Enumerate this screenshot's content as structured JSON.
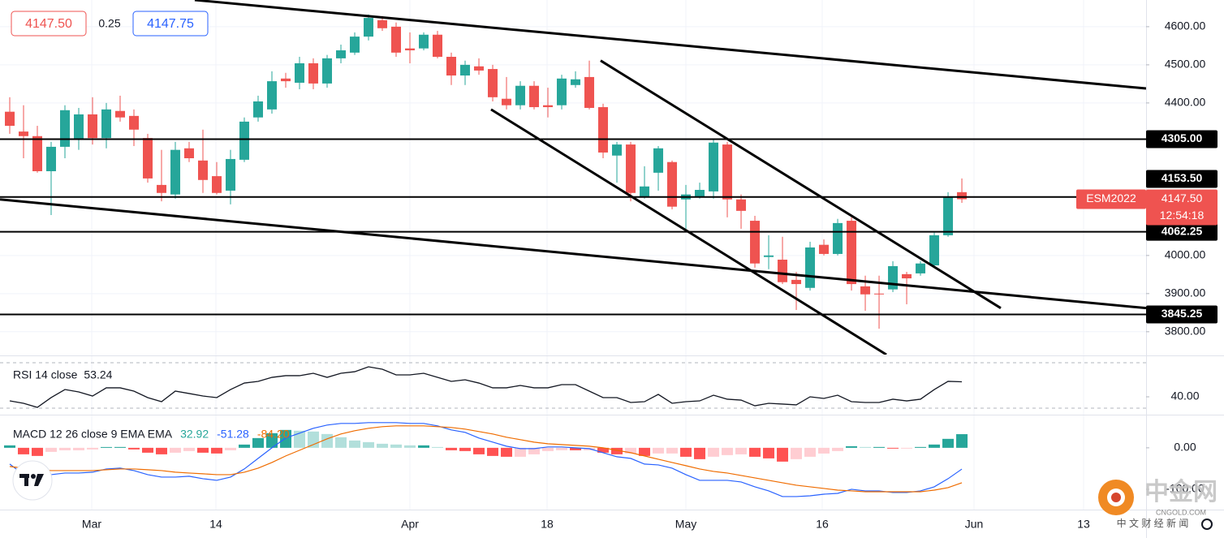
{
  "header": {
    "bid": "4147.50",
    "spread": "0.25",
    "ask": "4147.75"
  },
  "chart_data": [
    {
      "type": "candlestick",
      "symbol": "ESM2022",
      "last_price_label": "4147.50",
      "countdown": "12:54:18",
      "up_color": "#26a69a",
      "down_color": "#ef5350",
      "grid": true,
      "xlim": [
        -0.706,
        82.35
      ],
      "xticks": [
        {
          "value": 5.94,
          "label": "Mar"
        },
        {
          "value": 14.94,
          "label": "14"
        },
        {
          "value": 29.0,
          "label": "Apr"
        },
        {
          "value": 38.94,
          "label": "18"
        },
        {
          "value": 49.0,
          "label": "May"
        },
        {
          "value": 58.88,
          "label": "16"
        },
        {
          "value": 69.88,
          "label": "Jun"
        },
        {
          "value": 77.82,
          "label": "13"
        }
      ],
      "ylim": [
        3740,
        4670
      ],
      "yticks": [
        {
          "value": 3800,
          "label": "3800.00"
        },
        {
          "value": 3900,
          "label": "3900.00"
        },
        {
          "value": 4000,
          "label": "4000.00"
        },
        {
          "value": 4400,
          "label": "4400.00"
        },
        {
          "value": 4500,
          "label": "4500.00"
        },
        {
          "value": 4600,
          "label": "4600.00"
        }
      ],
      "levels": [
        {
          "value": 4305,
          "label": "4305.00"
        },
        {
          "value": 4153.5,
          "label": "4153.50"
        },
        {
          "value": 4062.25,
          "label": "4062.25"
        },
        {
          "value": 3845.25,
          "label": "3845.25"
        }
      ],
      "trendlines": [
        {
          "x": [
            13.41,
            82.35
          ],
          "y": [
            4670,
            4438
          ]
        },
        {
          "x": [
            -0.706,
            82.35
          ],
          "y": [
            4147,
            3862
          ]
        },
        {
          "x": [
            42.82,
            71.82
          ],
          "y": [
            4511,
            3862
          ]
        },
        {
          "x": [
            34.88,
            63.53
          ],
          "y": [
            4383,
            3740
          ]
        }
      ],
      "ohlc": [
        [
          4377,
          4415,
          4319,
          4340
        ],
        [
          4325,
          4394,
          4255,
          4313
        ],
        [
          4313,
          4340,
          4217,
          4221
        ],
        [
          4221,
          4298,
          4106,
          4285
        ],
        [
          4285,
          4394,
          4255,
          4381
        ],
        [
          4304,
          4387,
          4277,
          4370
        ],
        [
          4370,
          4415,
          4291,
          4308
        ],
        [
          4308,
          4400,
          4281,
          4383
        ],
        [
          4379,
          4419,
          4351,
          4362
        ],
        [
          4366,
          4383,
          4287,
          4330
        ],
        [
          4308,
          4319,
          4191,
          4202
        ],
        [
          4185,
          4277,
          4142,
          4164
        ],
        [
          4160,
          4298,
          4149,
          4277
        ],
        [
          4281,
          4298,
          4245,
          4255
        ],
        [
          4249,
          4330,
          4164,
          4198
        ],
        [
          4208,
          4245,
          4160,
          4164
        ],
        [
          4170,
          4277,
          4134,
          4253
        ],
        [
          4251,
          4362,
          4245,
          4351
        ],
        [
          4362,
          4419,
          4351,
          4404
        ],
        [
          4383,
          4483,
          4372,
          4457
        ],
        [
          4464,
          4479,
          4440,
          4457
        ],
        [
          4453,
          4521,
          4436,
          4504
        ],
        [
          4504,
          4517,
          4436,
          4451
        ],
        [
          4451,
          4526,
          4440,
          4517
        ],
        [
          4517,
          4553,
          4504,
          4538
        ],
        [
          4532,
          4585,
          4526,
          4574
        ],
        [
          4574,
          4632,
          4564,
          4623
        ],
        [
          4617,
          4628,
          4589,
          4596
        ],
        [
          4600,
          4611,
          4521,
          4532
        ],
        [
          4543,
          4585,
          4504,
          4538
        ],
        [
          4543,
          4585,
          4538,
          4579
        ],
        [
          4579,
          4589,
          4517,
          4521
        ],
        [
          4521,
          4532,
          4447,
          4472
        ],
        [
          4472,
          4511,
          4447,
          4500
        ],
        [
          4496,
          4517,
          4474,
          4485
        ],
        [
          4489,
          4500,
          4404,
          4415
        ],
        [
          4411,
          4468,
          4383,
          4394
        ],
        [
          4394,
          4457,
          4383,
          4445
        ],
        [
          4445,
          4457,
          4383,
          4389
        ],
        [
          4394,
          4440,
          4362,
          4389
        ],
        [
          4394,
          4474,
          4383,
          4464
        ],
        [
          4447,
          4483,
          4440,
          4462
        ],
        [
          4468,
          4511,
          4383,
          4387
        ],
        [
          4389,
          4398,
          4255,
          4270
        ],
        [
          4262,
          4298,
          4191,
          4291
        ],
        [
          4291,
          4298,
          4142,
          4164
        ],
        [
          4155,
          4234,
          4149,
          4181
        ],
        [
          4217,
          4287,
          4170,
          4281
        ],
        [
          4245,
          4249,
          4121,
          4128
        ],
        [
          4147,
          4185,
          4070,
          4160
        ],
        [
          4155,
          4191,
          4149,
          4172
        ],
        [
          4168,
          4304,
          4149,
          4296
        ],
        [
          4291,
          4298,
          4100,
          4147
        ],
        [
          4147,
          4160,
          4070,
          4117
        ],
        [
          4091,
          4104,
          3968,
          3979
        ],
        [
          3996,
          4053,
          3964,
          4000
        ],
        [
          3989,
          4049,
          3925,
          3930
        ],
        [
          3936,
          3957,
          3857,
          3925
        ],
        [
          3915,
          4036,
          3908,
          4021
        ],
        [
          4028,
          4042,
          4000,
          4004
        ],
        [
          4004,
          4096,
          4000,
          4085
        ],
        [
          4091,
          4100,
          3908,
          3925
        ],
        [
          3919,
          3947,
          3855,
          3898
        ],
        [
          3900,
          3947,
          3808,
          3898
        ],
        [
          3911,
          3985,
          3904,
          3972
        ],
        [
          3951,
          3957,
          3872,
          3940
        ],
        [
          3953,
          3985,
          3947,
          3979
        ],
        [
          3974,
          4060,
          3968,
          4053
        ],
        [
          4053,
          4166,
          4049,
          4153
        ],
        [
          4166,
          4202,
          4138,
          4147.5
        ]
      ]
    },
    {
      "type": "line",
      "title": "RSI 14 close",
      "legend_value": "53.24",
      "grid": false,
      "ylim": [
        25,
        75
      ],
      "yticks": [
        {
          "value": 40,
          "label": "40.00"
        }
      ],
      "bands": [
        30,
        70
      ],
      "series": [
        {
          "color": "#131722",
          "values": [
            36.4,
            34.3,
            30.7,
            39.3,
            46.4,
            44.3,
            40.7,
            47.9,
            47.9,
            45,
            39.3,
            35.7,
            45,
            42.9,
            40.7,
            39.3,
            46.4,
            52.1,
            53.6,
            57.1,
            58.6,
            58.6,
            60.7,
            57.1,
            60.7,
            62.1,
            66.4,
            64.3,
            59.3,
            59.3,
            60.7,
            57.1,
            53.6,
            55,
            52.1,
            47.9,
            47.9,
            50,
            47.9,
            47.9,
            50.7,
            50.7,
            45,
            39.3,
            39.3,
            35,
            35.7,
            42.1,
            34.3,
            35.7,
            36.4,
            41.4,
            37.9,
            37.1,
            32.1,
            34.3,
            33.6,
            32.9,
            40,
            38.6,
            41.4,
            35.7,
            35,
            35,
            37.9,
            36.4,
            37.9,
            46.4,
            53.6,
            53.24
          ]
        }
      ]
    },
    {
      "type": "macd",
      "title": "MACD 12 26 close 9 EMA EMA",
      "legend_values": [
        "32.92",
        "-51.28",
        "-84.20"
      ],
      "grid": false,
      "ylim": [
        -149,
        78
      ],
      "yticks": [
        {
          "value": 0,
          "label": "0.00"
        },
        {
          "value": -100,
          "label": "-100.00"
        }
      ],
      "histogram": {
        "colors": [
          "#26a69a",
          "#b2dfdb",
          "#ff5252",
          "#ffcdd2"
        ],
        "values": [
          5.9,
          -15.7,
          -19.6,
          -9.8,
          -5.9,
          -5.9,
          -3.9,
          1.9,
          2,
          -3.9,
          -11.8,
          -15.7,
          -11.8,
          -7.8,
          -11.8,
          -13.7,
          -5.9,
          7.8,
          23.5,
          35.3,
          43.1,
          41.2,
          39.3,
          33.3,
          25.5,
          17.6,
          13.7,
          9.8,
          7.9,
          5.9,
          5.9,
          1.9,
          -5.9,
          -7.8,
          -15.7,
          -19.6,
          -21.6,
          -21.6,
          -15.7,
          -7.8,
          -5.8,
          -5.9,
          -5.9,
          -11.8,
          -15.7,
          -13.7,
          -19.6,
          -13.7,
          -13.7,
          -21.6,
          -27.4,
          -21.5,
          -17.6,
          -15.7,
          -21.6,
          -25.5,
          -33.3,
          -27.4,
          -21.6,
          -13.8,
          -7.8,
          3.9,
          2,
          2,
          -1.9,
          -1.9,
          2,
          7.9,
          21.6,
          32.92
        ]
      },
      "series": [
        {
          "color": "#2962ff",
          "values": [
            -39.2,
            -64.7,
            -70.6,
            -64.7,
            -60.8,
            -60.8,
            -58.8,
            -51,
            -49,
            -54.9,
            -64.7,
            -70.6,
            -70.6,
            -68.6,
            -74.5,
            -78.4,
            -70.6,
            -51,
            -25.5,
            0,
            23.5,
            35.3,
            47.1,
            54.9,
            58.8,
            58.8,
            60.8,
            60.8,
            60.8,
            58.8,
            58.8,
            52.9,
            43.1,
            37.3,
            23.5,
            13.7,
            3.9,
            -2,
            -2,
            2,
            2,
            0,
            -2,
            -11.8,
            -21.6,
            -25.5,
            -39.2,
            -41.2,
            -49,
            -64.7,
            -78.4,
            -78.4,
            -78.4,
            -82.4,
            -94.1,
            -103.9,
            -117.6,
            -117.6,
            -115.7,
            -111.8,
            -109.8,
            -100,
            -103.9,
            -103.9,
            -107.8,
            -107.8,
            -103.9,
            -94.1,
            -74.5,
            -51.28
          ]
        },
        {
          "color": "#ef6c00",
          "values": [
            -45.1,
            -49,
            -51,
            -54.9,
            -54.9,
            -54.9,
            -54.9,
            -52.9,
            -51,
            -51,
            -52.9,
            -54.9,
            -58.8,
            -60.8,
            -62.7,
            -64.7,
            -64.7,
            -58.8,
            -49,
            -35.3,
            -19.6,
            -5.9,
            7.8,
            21.6,
            33.3,
            41.2,
            47.1,
            51,
            52.9,
            52.9,
            52.9,
            51,
            49,
            45.1,
            39.2,
            33.3,
            25.5,
            19.6,
            13.7,
            9.8,
            7.8,
            5.9,
            3.9,
            0,
            -5.9,
            -11.8,
            -19.6,
            -27.5,
            -35.3,
            -43.1,
            -51,
            -56.9,
            -60.8,
            -66.7,
            -72.5,
            -78.4,
            -84.3,
            -90.2,
            -94.1,
            -98,
            -102,
            -103.9,
            -105.9,
            -105.9,
            -105.9,
            -105.9,
            -105.9,
            -102,
            -96.1,
            -84.2
          ]
        }
      ]
    }
  ],
  "watermark": {
    "name": "中金网",
    "site": "CNGOLD.COM",
    "tagline": "中 文 财 经 新 闻"
  }
}
